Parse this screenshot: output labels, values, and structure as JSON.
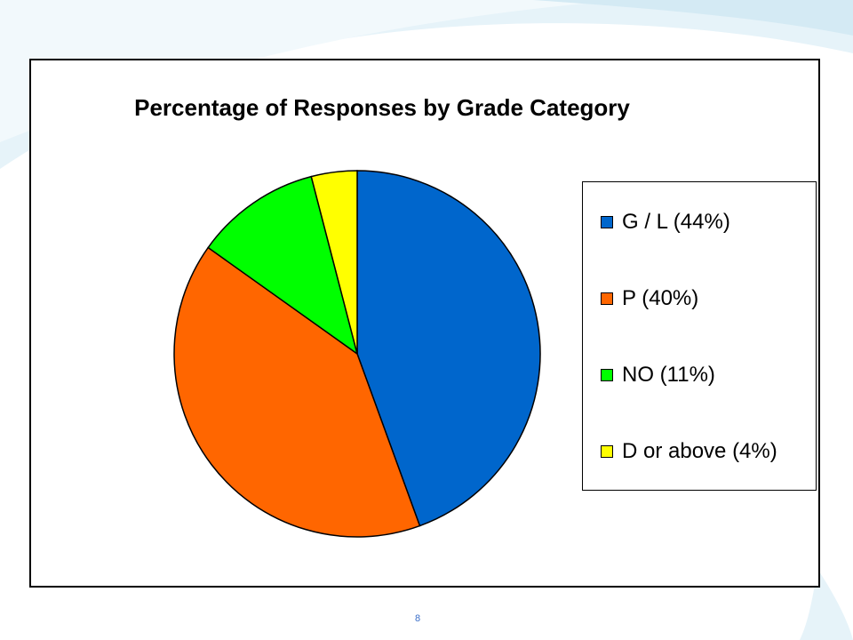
{
  "slide": {
    "page_number": "8",
    "colors": {
      "background_swoosh": "#cfe8f3",
      "background_swoosh_light": "#e6f3f9",
      "page_number": "#3b6fc9"
    }
  },
  "chart_data": {
    "type": "pie",
    "title": "Percentage of Responses by Grade Category",
    "categories": [
      "G / L (44%)",
      "P (40%)",
      "NO (11%)",
      "D or above (4%)"
    ],
    "values": [
      44,
      40,
      11,
      4
    ],
    "colors": [
      "#0066cc",
      "#ff6600",
      "#00ff00",
      "#ffff00"
    ],
    "start_angle": "12 o'clock, clockwise",
    "legend": "right"
  }
}
